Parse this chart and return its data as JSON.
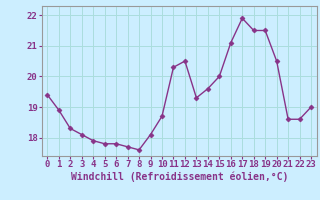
{
  "x": [
    0,
    1,
    2,
    3,
    4,
    5,
    6,
    7,
    8,
    9,
    10,
    11,
    12,
    13,
    14,
    15,
    16,
    17,
    18,
    19,
    20,
    21,
    22,
    23
  ],
  "y": [
    19.4,
    18.9,
    18.3,
    18.1,
    17.9,
    17.8,
    17.8,
    17.7,
    17.6,
    18.1,
    18.7,
    20.3,
    20.5,
    19.3,
    19.6,
    20.0,
    21.1,
    21.9,
    21.5,
    21.5,
    20.5,
    18.6,
    18.6,
    19.0
  ],
  "line_color": "#883388",
  "marker": "D",
  "markersize": 2.5,
  "linewidth": 1.0,
  "xlabel": "Windchill (Refroidissement éolien,°C)",
  "ylim": [
    17.4,
    22.3
  ],
  "xlim": [
    -0.5,
    23.5
  ],
  "yticks": [
    18,
    19,
    20,
    21,
    22
  ],
  "xticks": [
    0,
    1,
    2,
    3,
    4,
    5,
    6,
    7,
    8,
    9,
    10,
    11,
    12,
    13,
    14,
    15,
    16,
    17,
    18,
    19,
    20,
    21,
    22,
    23
  ],
  "grid_color": "#aadddd",
  "bg_color": "#cceeff",
  "tick_fontsize": 6.5,
  "xlabel_fontsize": 7.0
}
